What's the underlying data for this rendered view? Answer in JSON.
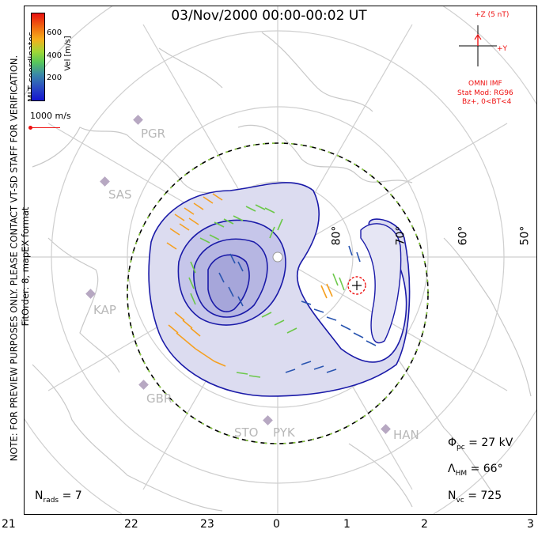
{
  "title": "03/Nov/2000 00:00-00:02 UT",
  "side_note": "NOTE: FOR PREVIEW PURPOSES ONLY. PLEASE CONTACT VT-SD STAFF FOR VERIFICATION.",
  "side_note2": "FitOrder: 8, mapEX format",
  "mlt_label": "MLT coordinates",
  "colorbar": {
    "label": "Vel [m/s]",
    "ticks": [
      "600",
      "400",
      "200"
    ]
  },
  "scale_label": "1000 m/s",
  "imf": {
    "z_label": "+Z (5 nT)",
    "y_label": "+Y",
    "source": "OMNI IMF",
    "model": "Stat Mod: RG96",
    "condition": "Bz+, 0<BT<4"
  },
  "lat_labels": [
    "80°",
    "70°",
    "60°",
    "50°"
  ],
  "stations": [
    "PGR",
    "SAS",
    "KAP",
    "GBR",
    "STO",
    "PYK",
    "HAN"
  ],
  "stats": {
    "phi_label": "Φ",
    "phi_sub": "pc",
    "phi_value": "= 27 kV",
    "lambda_label": "Λ",
    "lambda_sub": "HM",
    "lambda_value": "= 66°",
    "nvc_label": "N",
    "nvc_sub": "vc",
    "nvc_value": "= 725",
    "nrads_label": "N",
    "nrads_sub": "rads",
    "nrads_value": "= 7"
  },
  "mlt_ticks": [
    "21",
    "22",
    "23",
    "0",
    "1",
    "2",
    "3"
  ],
  "colors": {
    "contour": "#1a1aa8",
    "fill": "#dcdcf0",
    "imf": "#e11111",
    "grid": "#c8c8c8"
  }
}
